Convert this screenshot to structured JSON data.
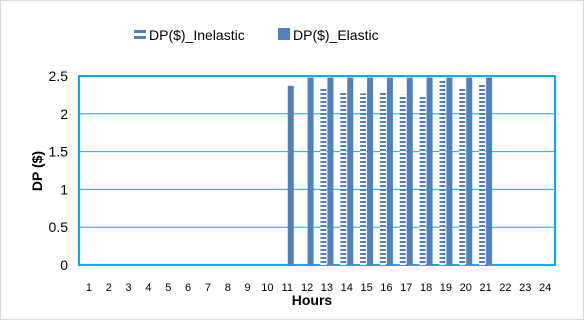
{
  "chart_data": {
    "type": "bar",
    "title": "",
    "xlabel": "Hours",
    "ylabel": "DP ($)",
    "ylim": [
      0,
      2.5
    ],
    "yticks": [
      "0",
      "0.5",
      "1",
      "1.5",
      "2",
      "2.5"
    ],
    "categories": [
      "1",
      "2",
      "3",
      "4",
      "5",
      "6",
      "7",
      "8",
      "9",
      "10",
      "11",
      "12",
      "13",
      "14",
      "15",
      "16",
      "17",
      "18",
      "19",
      "20",
      "21",
      "22",
      "23",
      "24"
    ],
    "series": [
      {
        "name": "DP($)_Inelastic",
        "color": "#4f81bd",
        "pattern": "horizontal-stripes",
        "values": [
          0,
          0,
          0,
          0,
          0,
          0,
          0,
          0,
          0,
          0,
          0,
          0,
          2.35,
          2.3,
          2.27,
          2.3,
          2.25,
          2.22,
          2.45,
          2.35,
          2.4,
          0,
          0,
          0
        ]
      },
      {
        "name": "DP($)_Elastic",
        "color": "#4f81bd",
        "pattern": "solid",
        "values": [
          0,
          0,
          0,
          0,
          0,
          0,
          0,
          0,
          0,
          0,
          2.37,
          2.48,
          2.48,
          2.48,
          2.48,
          2.48,
          2.48,
          2.48,
          2.48,
          2.48,
          2.48,
          0,
          0,
          0
        ]
      }
    ],
    "grid": true,
    "legend_position": "top",
    "plot_border_color": "#00b0f0"
  }
}
